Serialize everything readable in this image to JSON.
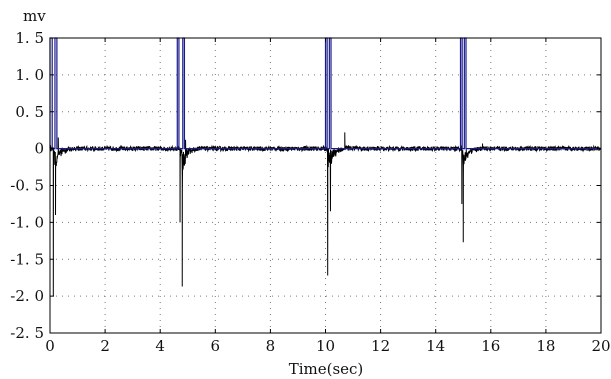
{
  "chart_data": {
    "type": "line",
    "title": "",
    "xlabel": "Time(sec)",
    "ylabel": "mv",
    "xlim": [
      0,
      20
    ],
    "ylim": [
      -2.5,
      1.5
    ],
    "x_ticks": [
      0,
      2,
      4,
      6,
      8,
      10,
      12,
      14,
      16,
      18,
      20
    ],
    "x_tick_labels": [
      "0",
      "2",
      "4",
      "6",
      "8",
      "10",
      "12",
      "14",
      "16",
      "18",
      "20"
    ],
    "y_ticks": [
      1.5,
      1.0,
      0.5,
      0,
      -0.5,
      -1.0,
      -1.5,
      -2.0,
      -2.5
    ],
    "y_tick_labels": [
      "1. 5",
      "1. 0",
      "0. 5",
      "0",
      "-0. 5",
      "-1. 0",
      "-1. 5",
      "-2. 0",
      "-2. 5"
    ],
    "grid": true,
    "series": [
      {
        "color": "#1a1a8c",
        "style": "pulse",
        "x": [
          0.0,
          0.0,
          0.02,
          0.08,
          0.08,
          0.18,
          0.18,
          0.25,
          0.25,
          4.62,
          4.62,
          4.68,
          4.68,
          4.82,
          4.82,
          4.88,
          4.88,
          10.0,
          10.0,
          10.06,
          10.06,
          10.14,
          10.14,
          10.2,
          10.2,
          14.9,
          14.9,
          14.96,
          14.96,
          15.04,
          15.04,
          15.1,
          15.1,
          20.0
        ],
        "y": [
          0.0,
          1.5,
          1.5,
          1.5,
          0.0,
          0.0,
          1.5,
          1.5,
          0.0,
          0.0,
          1.5,
          1.5,
          0.0,
          0.0,
          1.5,
          1.5,
          0.0,
          0.0,
          1.5,
          1.5,
          0.0,
          0.0,
          1.5,
          1.5,
          0.0,
          0.0,
          1.5,
          1.5,
          0.0,
          0.0,
          1.5,
          1.5,
          0.0,
          0.0
        ]
      },
      {
        "color": "#000000",
        "style": "signal",
        "baseline": 0.0,
        "noise_amplitude": 0.03,
        "spikes": [
          {
            "x": 0.12,
            "y": -2.0
          },
          {
            "x": 0.2,
            "y": -0.9
          },
          {
            "x": 0.3,
            "y": 0.15
          },
          {
            "x": 4.72,
            "y": -1.0
          },
          {
            "x": 4.8,
            "y": -1.87
          },
          {
            "x": 4.92,
            "y": 0.12
          },
          {
            "x": 10.08,
            "y": -1.72
          },
          {
            "x": 10.18,
            "y": -0.85
          },
          {
            "x": 10.7,
            "y": 0.22
          },
          {
            "x": 15.0,
            "y": -1.27
          },
          {
            "x": 14.95,
            "y": -0.75
          },
          {
            "x": 15.7,
            "y": 0.07
          }
        ]
      }
    ]
  }
}
